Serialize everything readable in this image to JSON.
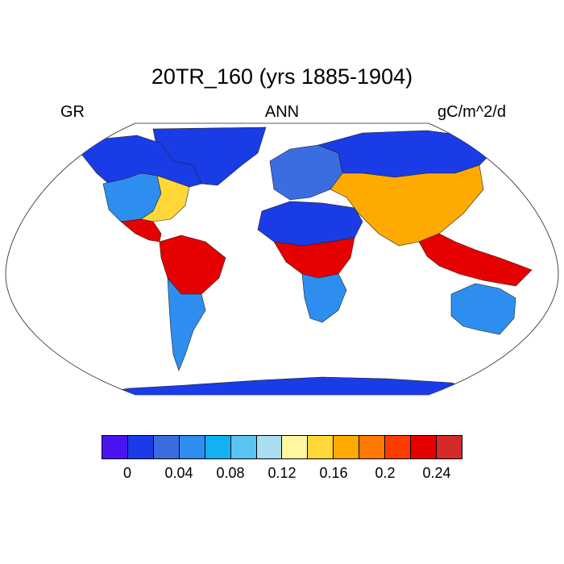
{
  "title": "20TR_160 (yrs 1885-1904)",
  "left_label": "GR",
  "center_label": "ANN",
  "right_label": "gC/m^2/d",
  "legend": {
    "colors": [
      "#4a14f0",
      "#1a3ce6",
      "#3a6ee0",
      "#2e8ef0",
      "#14b0f4",
      "#5ac4f2",
      "#aadcf2",
      "#fdf7a0",
      "#ffd838",
      "#ffaa00",
      "#ff7800",
      "#ff3c00",
      "#e60000",
      "#d42a28"
    ],
    "tick_labels": [
      "0",
      "0.04",
      "0.08",
      "0.12",
      "0.16",
      "0.2",
      "0.24"
    ]
  },
  "map_regions": [
    {
      "name": "greenland",
      "color": "#1a3ce6"
    },
    {
      "name": "north-america-north",
      "color": "#1a3ce6"
    },
    {
      "name": "north-america-temperate",
      "color": "#2e8ef0"
    },
    {
      "name": "north-america-east",
      "color": "#ffd838"
    },
    {
      "name": "central-america",
      "color": "#e60000"
    },
    {
      "name": "south-america-amazon",
      "color": "#e60000"
    },
    {
      "name": "south-america-south",
      "color": "#2e8ef0"
    },
    {
      "name": "europe",
      "color": "#3a6ee0"
    },
    {
      "name": "asia-north",
      "color": "#1a3ce6"
    },
    {
      "name": "asia-south",
      "color": "#ffaa00"
    },
    {
      "name": "africa-north",
      "color": "#1a3ce6"
    },
    {
      "name": "africa-central",
      "color": "#e60000"
    },
    {
      "name": "africa-south",
      "color": "#2e8ef0"
    },
    {
      "name": "southeast-asia",
      "color": "#e60000"
    },
    {
      "name": "australia",
      "color": "#2e8ef0"
    },
    {
      "name": "antarctica",
      "color": "#1a3ce6"
    }
  ]
}
